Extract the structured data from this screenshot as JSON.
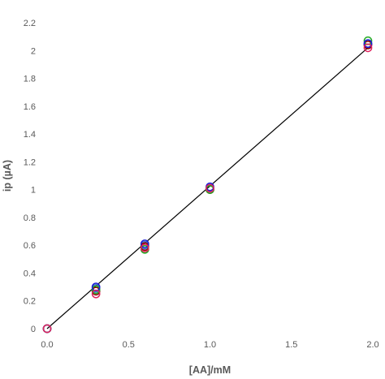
{
  "chart_data": {
    "type": "scatter",
    "title": "",
    "xlabel": "[AA]/mM",
    "ylabel": "ip (µA)",
    "xlim": [
      0.0,
      2.0
    ],
    "ylim": [
      0,
      2.2
    ],
    "x_ticks": [
      "0.0",
      "0.5",
      "1.0",
      "1.5",
      "2.0"
    ],
    "y_ticks": [
      "0",
      "0.2",
      "0.4",
      "0.6",
      "0.8",
      "1",
      "1.2",
      "1.4",
      "1.6",
      "1.8",
      "2",
      "2.2"
    ],
    "grid": false,
    "legend": "none",
    "series": [
      {
        "color": "#4472C4",
        "x": [
          0,
          0.3,
          0.6,
          1.0,
          1.97
        ],
        "y": [
          0,
          0.29,
          0.6,
          1.01,
          2.05
        ]
      },
      {
        "color": "#8B0000",
        "x": [
          0,
          0.3,
          0.6,
          1.0,
          1.97
        ],
        "y": [
          0,
          0.27,
          0.59,
          1.0,
          2.04
        ]
      },
      {
        "color": "#22AA22",
        "x": [
          0,
          0.3,
          0.6,
          1.0,
          1.97
        ],
        "y": [
          0,
          0.28,
          0.57,
          1.0,
          2.07
        ]
      },
      {
        "color": "#1A1AD6",
        "x": [
          0,
          0.3,
          0.6,
          1.0,
          1.97
        ],
        "y": [
          0,
          0.3,
          0.61,
          1.02,
          2.05
        ]
      },
      {
        "color": "#E0245E",
        "x": [
          0,
          0.3,
          0.6,
          1.0,
          1.97
        ],
        "y": [
          0,
          0.25,
          0.58,
          1.01,
          2.02
        ]
      }
    ],
    "trendline": {
      "color": "#000000",
      "x": [
        0,
        1.97
      ],
      "y": [
        0,
        2.02
      ]
    }
  }
}
